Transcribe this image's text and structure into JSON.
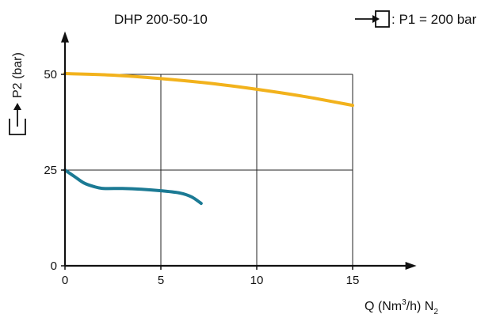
{
  "chart_data": {
    "type": "line",
    "title": "DHP 200-50-10",
    "condition": ": P1 = 200 bar",
    "xlabel_main": "Q (Nm",
    "xlabel_sup": "3",
    "xlabel_mid": "/h) N",
    "xlabel_sub": "2",
    "ylabel": "P2 (bar)",
    "xlim": [
      0,
      18
    ],
    "ylim": [
      0,
      60
    ],
    "x_ticks": [
      0,
      5,
      10,
      15
    ],
    "y_ticks": [
      0,
      25,
      50
    ],
    "x_tick_labels": [
      "0",
      "5",
      "10",
      "15"
    ],
    "y_tick_labels": [
      "0",
      "25",
      "50"
    ],
    "grid": true,
    "series": [
      {
        "color": "#F2B21C",
        "points": [
          [
            0,
            50.2
          ],
          [
            2.5,
            49.8
          ],
          [
            5,
            48.9
          ],
          [
            7.5,
            47.7
          ],
          [
            10,
            46.1
          ],
          [
            12.5,
            44.2
          ],
          [
            15,
            41.9
          ]
        ]
      },
      {
        "color": "#1B7A94",
        "points": [
          [
            0,
            25
          ],
          [
            0.5,
            23.3
          ],
          [
            1,
            21.6
          ],
          [
            1.5,
            20.7
          ],
          [
            2,
            20.2
          ],
          [
            3,
            20.2
          ],
          [
            4,
            20.0
          ],
          [
            5,
            19.6
          ],
          [
            6,
            19.0
          ],
          [
            6.6,
            18.0
          ],
          [
            7.1,
            16.3
          ]
        ]
      }
    ]
  }
}
